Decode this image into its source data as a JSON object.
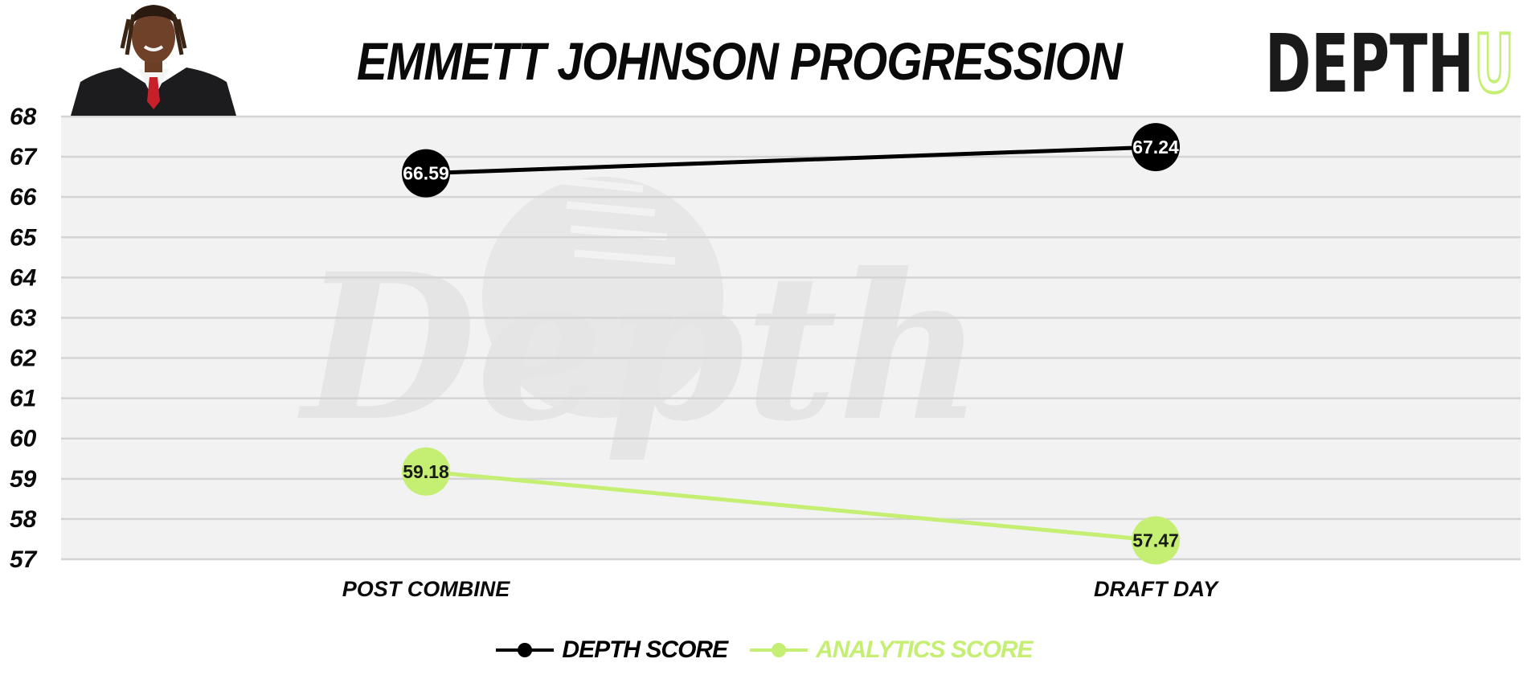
{
  "header": {
    "title": "EMMETT JOHNSON PROGRESSION",
    "logo_text_main": "DEPTH",
    "logo_text_accent": "U",
    "watermark_text": "Depth"
  },
  "colors": {
    "depth_series": "#000000",
    "analytics_series": "#c4ef72",
    "plot_background": "#f2f2f2",
    "gridline": "#d4d4d4",
    "logo_dark": "#1a1a1a",
    "logo_accent": "#c4ef72"
  },
  "chart_data": {
    "type": "line",
    "title": "EMMETT JOHNSON PROGRESSION",
    "categories": [
      "POST COMBINE",
      "DRAFT DAY"
    ],
    "series": [
      {
        "name": "DEPTH SCORE",
        "values": [
          66.59,
          67.24
        ],
        "color": "#000000",
        "label_color": "#ffffff"
      },
      {
        "name": "ANALYTICS SCORE",
        "values": [
          59.18,
          57.47
        ],
        "color": "#c4ef72",
        "label_color": "#1a1a1a"
      }
    ],
    "ylim": [
      57,
      68
    ],
    "yticks": [
      57,
      58,
      59,
      60,
      61,
      62,
      63,
      64,
      65,
      66,
      67,
      68
    ],
    "grid": true,
    "legend_position": "bottom-center",
    "data_labels": true
  }
}
